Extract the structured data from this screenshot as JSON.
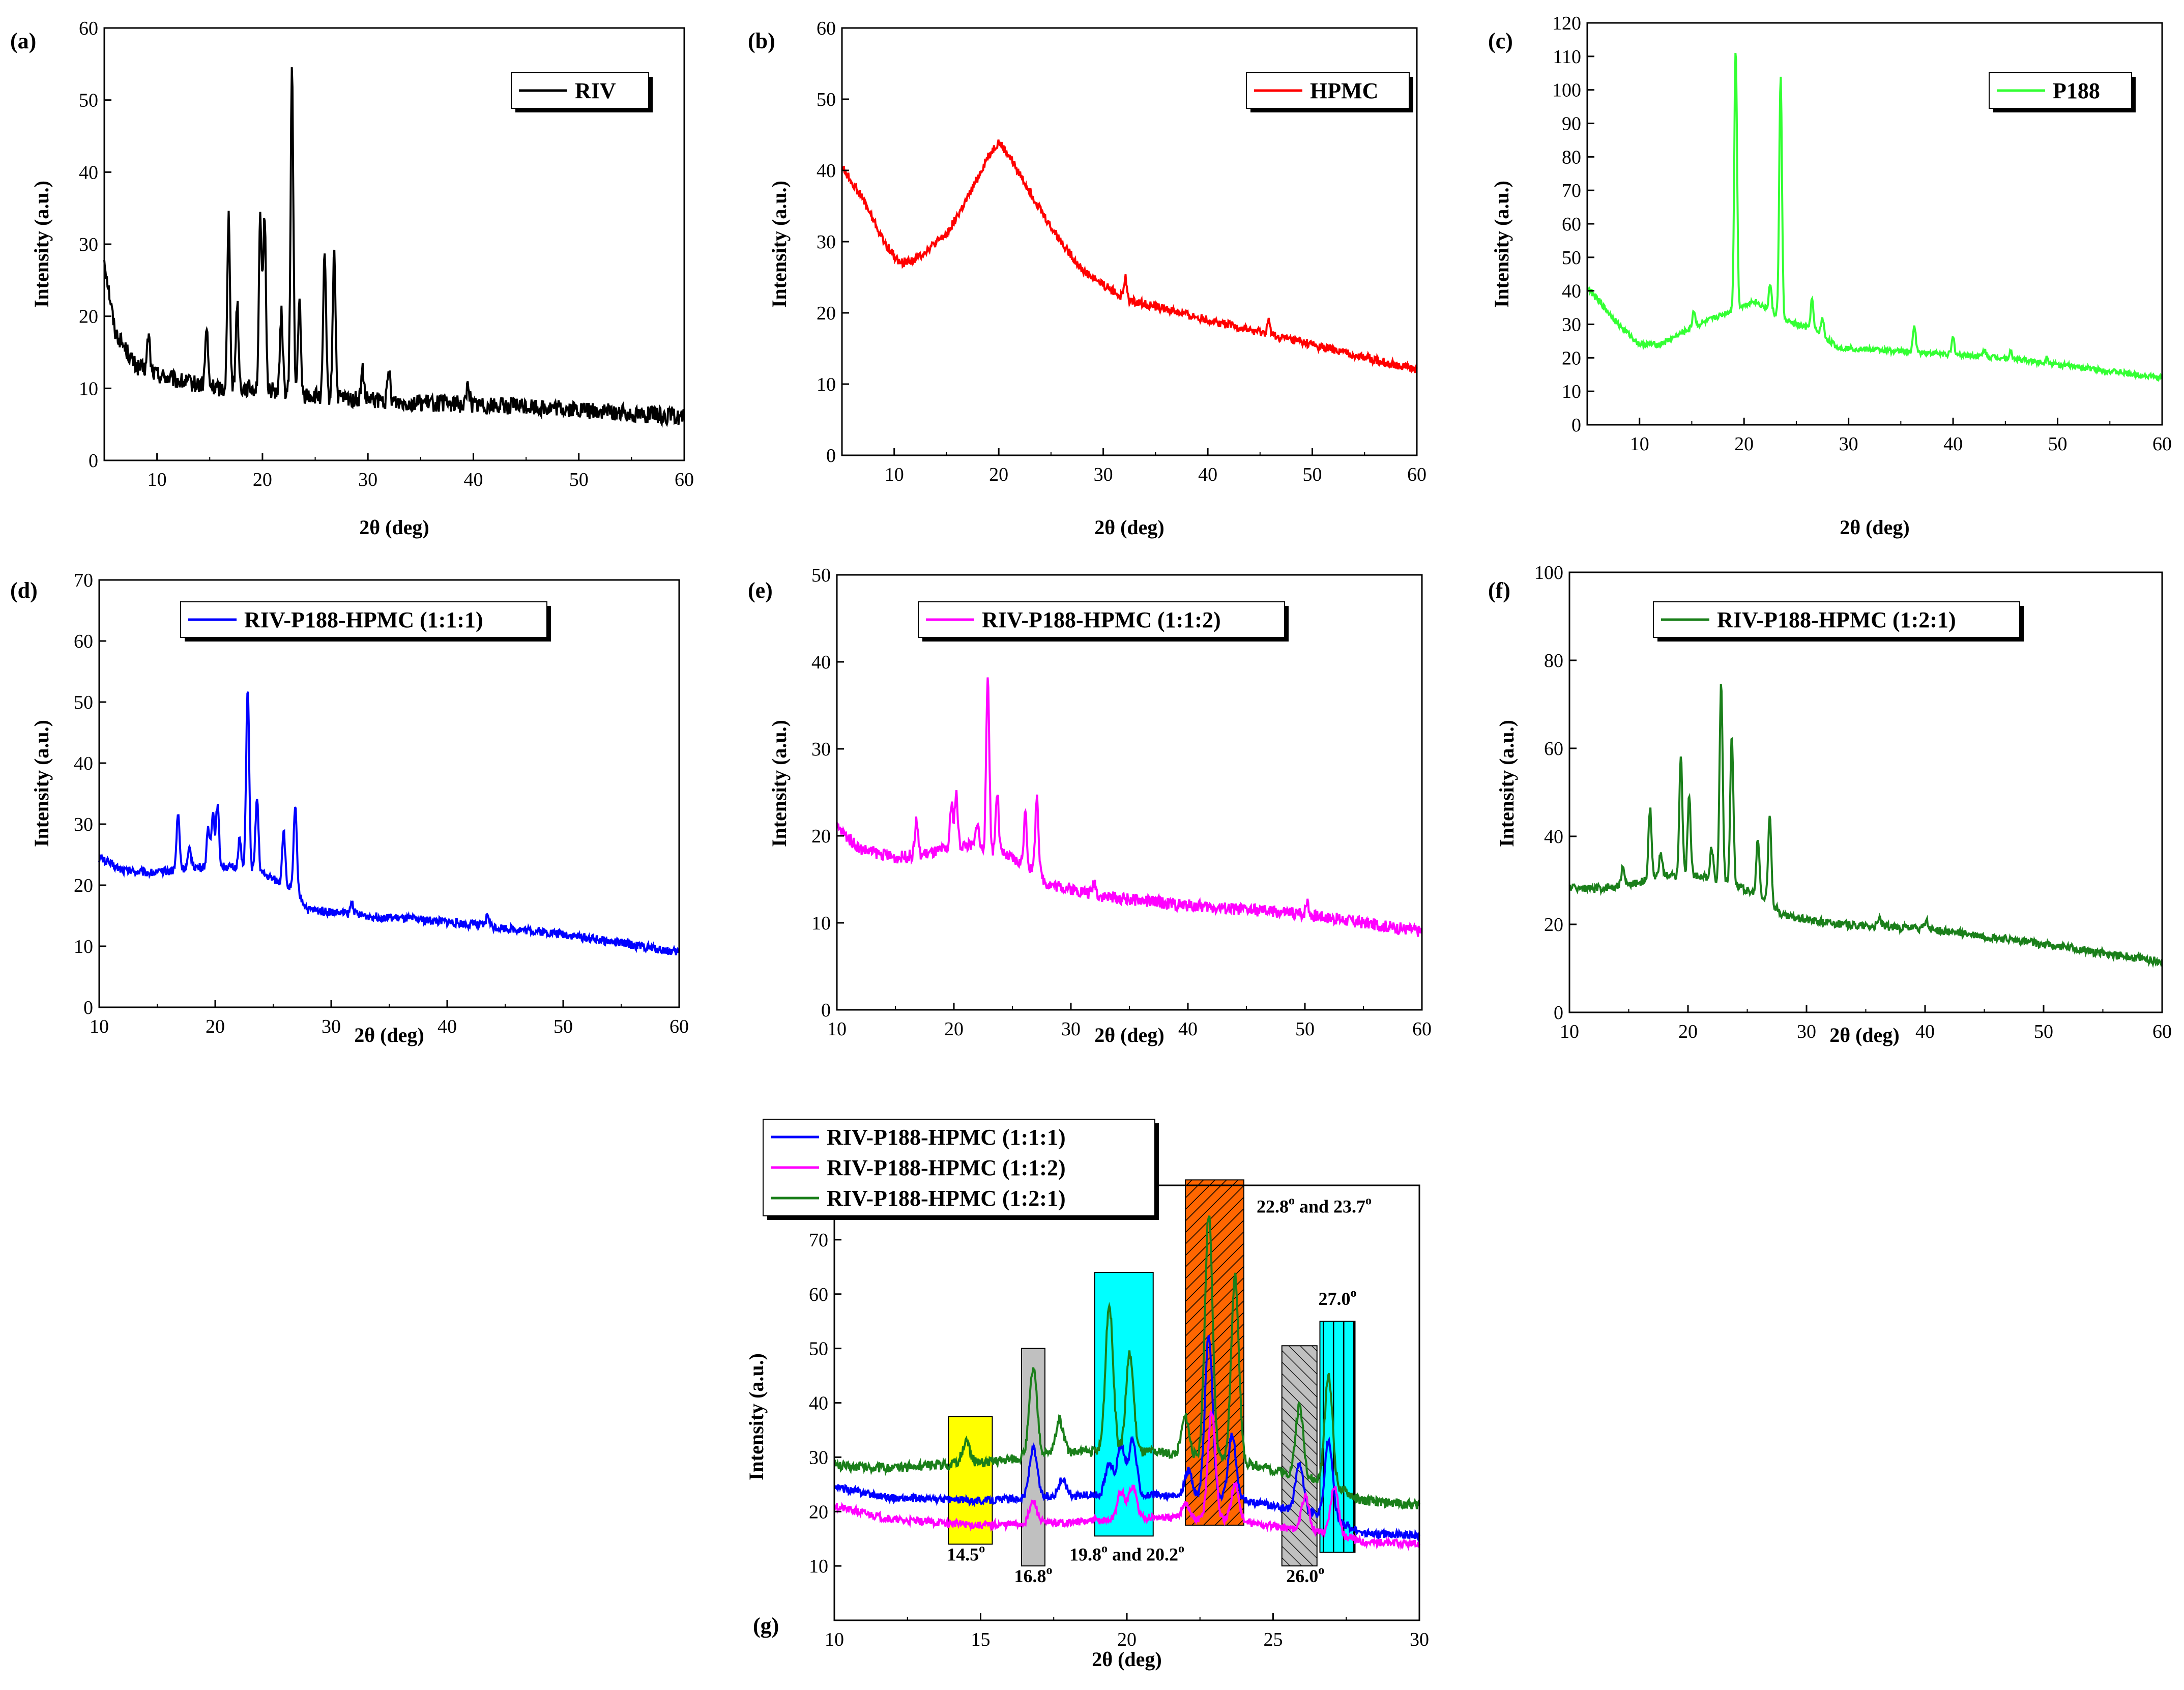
{
  "chart_data": [
    {
      "id": "a",
      "panel_label": "(a)",
      "type": "line",
      "xlabel": "2θ (deg)",
      "ylabel": "Intensity (a.u.)",
      "xlim": [
        5,
        60
      ],
      "ylim": [
        0,
        60
      ],
      "xticks": [
        10,
        20,
        30,
        40,
        50,
        60
      ],
      "yticks": [
        0,
        10,
        20,
        30,
        40,
        50,
        60
      ],
      "series": [
        {
          "name": "RIV",
          "color": "#000000",
          "baseline": [
            [
              5,
              28
            ],
            [
              6,
              18
            ],
            [
              8,
              13
            ],
            [
              12,
              11
            ],
            [
              16,
              10
            ],
            [
              20,
              10
            ],
            [
              24,
              9
            ],
            [
              28,
              8.5
            ],
            [
              35,
              8
            ],
            [
              45,
              7.5
            ],
            [
              55,
              6.5
            ],
            [
              60,
              6
            ]
          ],
          "peaks": [
            [
              9.2,
              5
            ],
            [
              14.7,
              8
            ],
            [
              16.8,
              24
            ],
            [
              17.6,
              12
            ],
            [
              19.8,
              24
            ],
            [
              20.2,
              24
            ],
            [
              21.8,
              11
            ],
            [
              22.8,
              45
            ],
            [
              23.5,
              13
            ],
            [
              25.9,
              20
            ],
            [
              26.8,
              21
            ],
            [
              29.5,
              4
            ],
            [
              32,
              4
            ],
            [
              39.5,
              3
            ]
          ],
          "noise": 1.2
        }
      ],
      "legend": "top-right",
      "grid": false
    },
    {
      "id": "b",
      "panel_label": "(b)",
      "type": "line",
      "xlabel": "2θ (deg)",
      "ylabel": "Intensity (a.u.)",
      "xlim": [
        5,
        60
      ],
      "ylim": [
        0,
        60
      ],
      "xticks": [
        10,
        20,
        30,
        40,
        50,
        60
      ],
      "yticks": [
        0,
        10,
        20,
        30,
        40,
        50,
        60
      ],
      "series": [
        {
          "name": "HPMC",
          "color": "#ff0000",
          "baseline": [
            [
              5,
              40.5
            ],
            [
              7,
              36
            ],
            [
              9,
              30
            ],
            [
              10.5,
              27
            ],
            [
              12,
              27.5
            ],
            [
              15,
              31
            ],
            [
              17,
              36
            ],
            [
              19,
              42
            ],
            [
              20,
              44
            ],
            [
              21,
              42
            ],
            [
              23,
              37
            ],
            [
              25,
              32
            ],
            [
              28,
              26
            ],
            [
              32,
              22
            ],
            [
              40,
              19
            ],
            [
              50,
              15.5
            ],
            [
              60,
              12
            ]
          ],
          "peaks": [
            [
              32.1,
              3
            ],
            [
              45.8,
              2
            ]
          ],
          "noise": 0.6
        }
      ],
      "legend": "top-right",
      "grid": false
    },
    {
      "id": "c",
      "panel_label": "(c)",
      "type": "line",
      "xlabel": "2θ (deg)",
      "ylabel": "Intensity (a.u.)",
      "xlim": [
        5,
        60
      ],
      "ylim": [
        0,
        120
      ],
      "xticks": [
        10,
        20,
        30,
        40,
        50,
        60
      ],
      "yticks": [
        0,
        10,
        20,
        30,
        40,
        50,
        60,
        70,
        80,
        90,
        100,
        110,
        120
      ],
      "series": [
        {
          "name": "P188",
          "color": "#33ff33",
          "baseline": [
            [
              5,
              41
            ],
            [
              8,
              30
            ],
            [
              10,
              24
            ],
            [
              12,
              24
            ],
            [
              15,
              29
            ],
            [
              18,
              33
            ],
            [
              21,
              37
            ],
            [
              24,
              31
            ],
            [
              27,
              28
            ],
            [
              29,
              23
            ],
            [
              35,
              22
            ],
            [
              45,
              20
            ],
            [
              55,
              16
            ],
            [
              60,
              14
            ]
          ],
          "peaks": [
            [
              15.2,
              5
            ],
            [
              19.2,
              78
            ],
            [
              22.5,
              8
            ],
            [
              23.5,
              72
            ],
            [
              26.5,
              9
            ],
            [
              27.5,
              5
            ],
            [
              36.3,
              8
            ],
            [
              40,
              5
            ],
            [
              43,
              2
            ],
            [
              45.5,
              2
            ],
            [
              49,
              2
            ]
          ],
          "noise": 0.8
        }
      ],
      "legend": "top-right",
      "grid": false
    },
    {
      "id": "d",
      "panel_label": "(d)",
      "type": "line",
      "xlabel": "2θ (deg)",
      "ylabel": "Intensity (a.u.)",
      "xlim": [
        10,
        60
      ],
      "ylim": [
        0,
        70
      ],
      "xticks": [
        10,
        20,
        30,
        40,
        50,
        60
      ],
      "yticks": [
        0,
        10,
        20,
        30,
        40,
        50,
        60,
        70
      ],
      "series": [
        {
          "name": "RIV-P188-HPMC (1:1:1)",
          "color": "#0000ff",
          "baseline": [
            [
              10,
              24.5
            ],
            [
              12,
              22.5
            ],
            [
              15,
              22
            ],
            [
              18,
              23
            ],
            [
              21,
              23
            ],
            [
              24,
              22
            ],
            [
              27,
              19
            ],
            [
              28,
              16
            ],
            [
              33,
              15
            ],
            [
              40,
              14
            ],
            [
              50,
              12
            ],
            [
              60,
              9
            ]
          ],
          "peaks": [
            [
              16.8,
              9
            ],
            [
              17.8,
              3
            ],
            [
              19.4,
              6
            ],
            [
              19.8,
              9
            ],
            [
              20.2,
              10
            ],
            [
              22.1,
              5
            ],
            [
              22.8,
              30
            ],
            [
              23.6,
              12
            ],
            [
              25.9,
              9
            ],
            [
              26.9,
              14
            ],
            [
              31.8,
              2
            ],
            [
              43.5,
              2
            ]
          ],
          "noise": 0.7
        }
      ],
      "legend": "top-center",
      "grid": false
    },
    {
      "id": "e",
      "panel_label": "(e)",
      "type": "line",
      "xlabel": "2θ (deg)",
      "ylabel": "Intensity (a.u.)",
      "xlim": [
        10,
        60
      ],
      "ylim": [
        0,
        50
      ],
      "xticks": [
        10,
        20,
        30,
        40,
        50,
        60
      ],
      "yticks": [
        0,
        10,
        20,
        30,
        40,
        50
      ],
      "series": [
        {
          "name": "RIV-P188-HPMC (1:1:2)",
          "color": "#ff00ff",
          "baseline": [
            [
              10,
              21
            ],
            [
              12,
              18.5
            ],
            [
              15,
              17.5
            ],
            [
              18,
              18
            ],
            [
              21,
              19
            ],
            [
              24,
              18
            ],
            [
              27,
              16
            ],
            [
              28,
              14.5
            ],
            [
              33,
              13
            ],
            [
              40,
              12
            ],
            [
              50,
              11
            ],
            [
              60,
              9
            ]
          ],
          "peaks": [
            [
              16.8,
              4
            ],
            [
              19.8,
              5
            ],
            [
              20.2,
              6
            ],
            [
              22,
              3
            ],
            [
              22.9,
              20
            ],
            [
              23.7,
              7
            ],
            [
              26.1,
              6
            ],
            [
              27.1,
              9
            ],
            [
              32,
              1.5
            ],
            [
              50.2,
              1.5
            ]
          ],
          "noise": 0.7
        }
      ],
      "legend": "top-center",
      "grid": false
    },
    {
      "id": "f",
      "panel_label": "(f)",
      "type": "line",
      "xlabel": "2θ (deg)",
      "ylabel": "Intensity (a.u.)",
      "xlim": [
        10,
        60
      ],
      "ylim": [
        0,
        100
      ],
      "xticks": [
        10,
        20,
        30,
        40,
        50,
        60
      ],
      "yticks": [
        0,
        20,
        40,
        60,
        80,
        100
      ],
      "series": [
        {
          "name": "RIV-P188-HPMC (1:2:1)",
          "color": "#1a7f1a",
          "baseline": [
            [
              10,
              28.5
            ],
            [
              12,
              28
            ],
            [
              15,
              29
            ],
            [
              18,
              31
            ],
            [
              21,
              31
            ],
            [
              24,
              29
            ],
            [
              27,
              25
            ],
            [
              28,
              22
            ],
            [
              33,
              20
            ],
            [
              40,
              19
            ],
            [
              50,
              15.5
            ],
            [
              60,
              11.5
            ]
          ],
          "peaks": [
            [
              14.5,
              4
            ],
            [
              16.8,
              16
            ],
            [
              17.7,
              6
            ],
            [
              19.4,
              27
            ],
            [
              20.1,
              18
            ],
            [
              22.0,
              7
            ],
            [
              22.8,
              45
            ],
            [
              23.7,
              34
            ],
            [
              25.9,
              13
            ],
            [
              26.9,
              20
            ],
            [
              36.2,
              2
            ],
            [
              40.1,
              2
            ]
          ],
          "noise": 0.9
        }
      ],
      "legend": "top-center",
      "grid": false
    },
    {
      "id": "g",
      "panel_label": "(g)",
      "type": "line",
      "xlabel": "2θ (deg)",
      "ylabel": "Intensity (a.u.)",
      "xlim": [
        10,
        30
      ],
      "ylim": [
        0,
        80
      ],
      "xticks": [
        10,
        15,
        20,
        25,
        30
      ],
      "yticks": [
        10,
        20,
        30,
        40,
        50,
        60,
        70
      ],
      "series_refs": [
        "d",
        "e",
        "f"
      ],
      "legend": "top-left",
      "grid": false,
      "annotations": [
        {
          "text": "14.5",
          "sup": "o",
          "x": 14.5,
          "y": 11
        },
        {
          "text": "16.8",
          "sup": "o",
          "x": 16.8,
          "y": 7
        },
        {
          "text": "19.8",
          "sup": "o",
          "text2": " and 20.2",
          "sup2": "o",
          "x": 20.0,
          "y": 11
        },
        {
          "text": "22.8",
          "sup": "o",
          "text2": " and 23.7",
          "sup2": "o",
          "x": 26.4,
          "y": 75
        },
        {
          "text": "26.0",
          "sup": "o",
          "x": 26.1,
          "y": 7
        },
        {
          "text": "27.0",
          "sup": "o",
          "x": 27.2,
          "y": 58
        }
      ],
      "highlight_boxes": [
        {
          "x": [
            13.9,
            15.4
          ],
          "y": [
            14,
            37.5
          ],
          "fill": "#ffff00",
          "hatch": "none"
        },
        {
          "x": [
            16.4,
            17.2
          ],
          "y": [
            10,
            50
          ],
          "fill": "#c0c0c0",
          "hatch": "none"
        },
        {
          "x": [
            18.9,
            20.9
          ],
          "y": [
            15.5,
            64
          ],
          "fill": "#00ffff",
          "hatch": "none"
        },
        {
          "x": [
            22.0,
            24.0
          ],
          "y": [
            17.5,
            81
          ],
          "fill": "#ff6600",
          "hatch": "diagonal"
        },
        {
          "x": [
            25.3,
            26.5
          ],
          "y": [
            10,
            50.5
          ],
          "fill": "#c0c0c0",
          "hatch": "diagonal-reverse"
        },
        {
          "x": [
            26.6,
            27.8
          ],
          "y": [
            12.5,
            55
          ],
          "fill": "#00ffff",
          "hatch": "vertical"
        }
      ]
    }
  ]
}
